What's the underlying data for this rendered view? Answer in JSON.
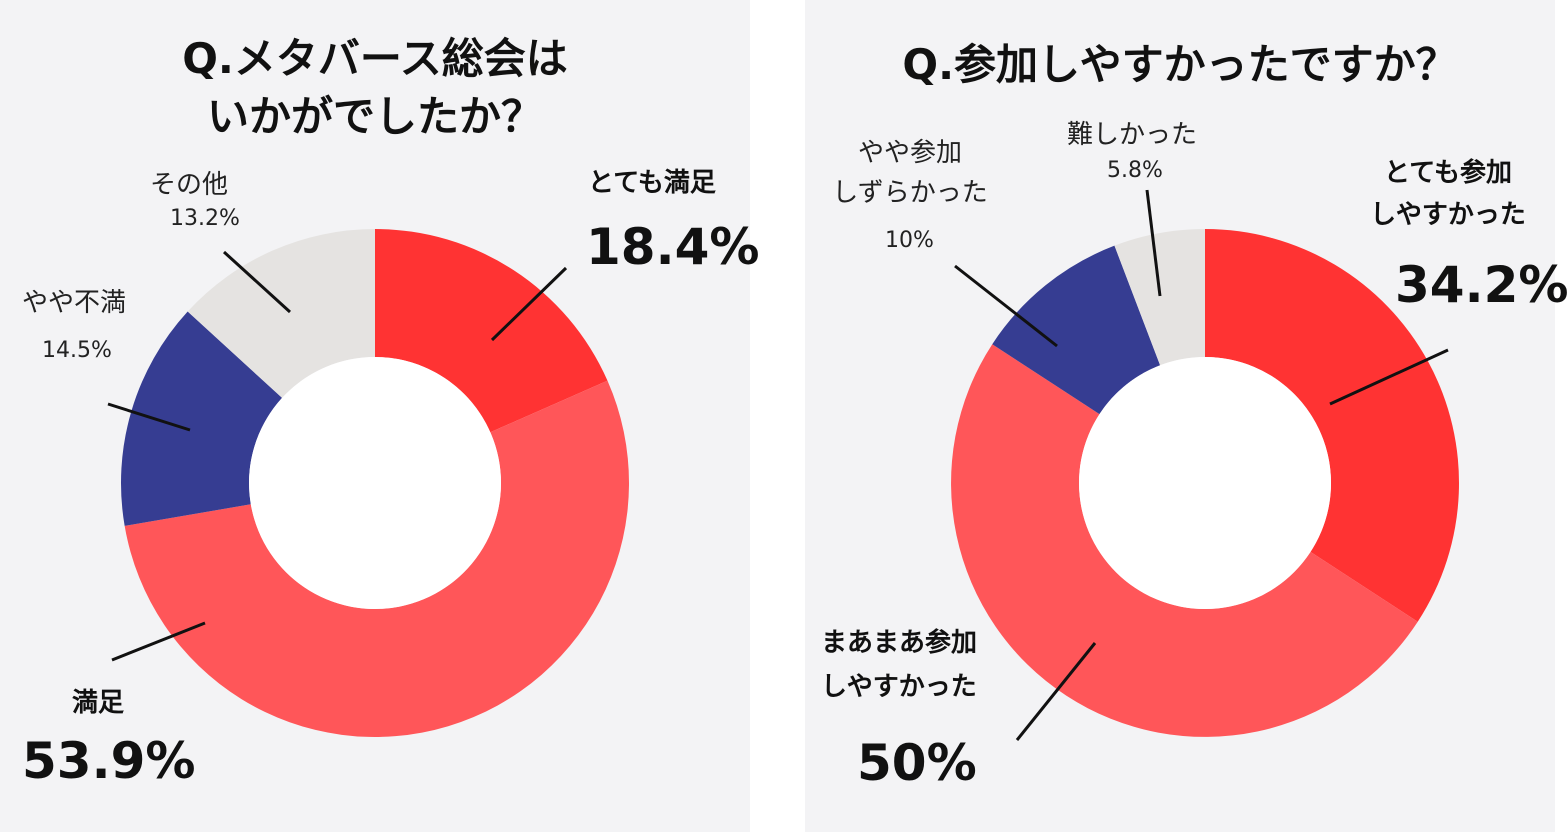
{
  "chart_data": [
    {
      "type": "pie",
      "title": "Q.メタバース総会はいかがでしたか？",
      "title_lines": [
        "Q.メタバース総会は",
        "いかがでしたか？"
      ],
      "donut": true,
      "slices": [
        {
          "label": "とても満足",
          "pct_text": "18.4%",
          "value": 18.4,
          "color": "#ff3333"
        },
        {
          "label": "満足",
          "pct_text": "53.9%",
          "value": 53.9,
          "color": "#ff5659"
        },
        {
          "label": "やや不満",
          "pct_text": "14.5%",
          "value": 14.5,
          "color": "#363d92"
        },
        {
          "label": "その他",
          "pct_text": "13.2%",
          "value": 13.2,
          "color": "#e5e3e1"
        }
      ]
    },
    {
      "type": "pie",
      "title": "Q.参加しやすかったですか？",
      "title_lines": [
        "Q.参加しやすかったですか？"
      ],
      "donut": true,
      "slices": [
        {
          "label": "とても参加しやすかった",
          "label_lines": [
            "とても参加",
            "しやすかった"
          ],
          "pct_text": "34.2%",
          "value": 34.2,
          "color": "#ff3333"
        },
        {
          "label": "まあまあ参加しやすかった",
          "label_lines": [
            "まあまあ参加",
            "しやすかった"
          ],
          "pct_text": "50%",
          "value": 50,
          "color": "#ff5659"
        },
        {
          "label": "やや参加しずらかった",
          "label_lines": [
            "やや参加",
            "しずらかった"
          ],
          "pct_text": "10%",
          "value": 10,
          "color": "#363d92"
        },
        {
          "label": "難しかった",
          "pct_text": "5.8%",
          "value": 5.8,
          "color": "#e5e3e1"
        }
      ]
    }
  ]
}
